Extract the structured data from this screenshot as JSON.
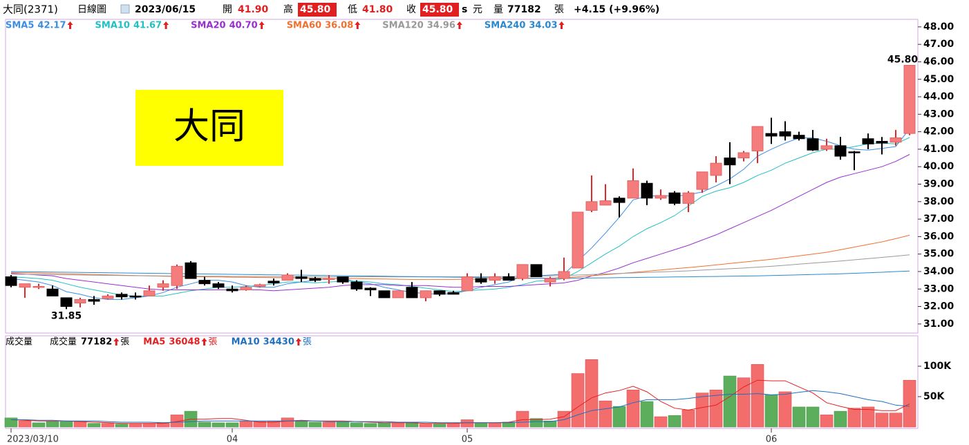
{
  "header": {
    "name": "大同(2371)",
    "period": "日線圖",
    "date": "2023/06/15",
    "open_label": "開",
    "open": "41.90",
    "high_label": "高",
    "high": "45.80",
    "low_label": "低",
    "low": "41.80",
    "close_label": "收",
    "close": "45.80",
    "s": "s",
    "currency": "元",
    "volume_label": "量",
    "volume": "77182",
    "volume_unit": "張",
    "change": "+4.15 (+9.96%)"
  },
  "chart_data": [
    {
      "type": "candlestick",
      "callout": "大同",
      "categories": [
        "2023/03/10",
        null,
        null,
        null,
        null,
        null,
        null,
        null,
        null,
        null,
        null,
        null,
        null,
        null,
        null,
        null,
        "04",
        null,
        null,
        null,
        null,
        null,
        null,
        null,
        null,
        null,
        null,
        null,
        null,
        null,
        null,
        null,
        null,
        "05",
        null,
        null,
        null,
        null,
        null,
        null,
        null,
        null,
        null,
        null,
        null,
        null,
        null,
        null,
        null,
        null,
        null,
        null,
        null,
        null,
        null,
        "06",
        null,
        null,
        null,
        null,
        null,
        null,
        null,
        null,
        null,
        null
      ],
      "open": [
        33.7,
        33.1,
        33.1,
        33.0,
        32.5,
        32.2,
        32.4,
        32.45,
        32.7,
        32.6,
        32.6,
        33.1,
        33.2,
        34.5,
        33.5,
        33.3,
        33.0,
        32.95,
        33.15,
        33.45,
        33.5,
        33.7,
        33.6,
        33.55,
        33.7,
        33.4,
        33.05,
        32.9,
        32.5,
        33.1,
        32.5,
        32.9,
        32.8,
        32.9,
        33.6,
        33.5,
        33.7,
        33.6,
        34.4,
        33.4,
        33.6,
        34.2,
        37.5,
        37.8,
        38.2,
        38.2,
        39.05,
        38.2,
        38.5,
        37.9,
        38.7,
        39.5,
        40.5,
        40.5,
        40.9,
        41.9,
        42.0,
        41.8,
        41.6,
        41.0,
        41.2,
        40.85,
        41.6,
        41.45,
        41.4,
        41.9
      ],
      "high": [
        33.8,
        33.3,
        33.3,
        33.2,
        32.5,
        32.5,
        32.6,
        32.7,
        32.8,
        32.8,
        33.2,
        33.5,
        34.4,
        34.6,
        33.7,
        33.4,
        33.2,
        33.2,
        33.3,
        33.6,
        33.9,
        34.1,
        33.7,
        33.8,
        33.7,
        33.5,
        33.1,
        32.9,
        32.9,
        33.4,
        32.9,
        32.9,
        32.9,
        33.9,
        33.9,
        33.9,
        33.9,
        34.4,
        34.4,
        33.7,
        34.8,
        37.4,
        39.5,
        39.0,
        38.3,
        39.9,
        39.2,
        38.7,
        38.6,
        38.6,
        39.7,
        40.6,
        41.4,
        40.9,
        42.3,
        42.8,
        42.6,
        42.0,
        42.1,
        41.6,
        41.7,
        40.9,
        41.9,
        41.7,
        42.1,
        45.8
      ],
      "low": [
        33.1,
        32.5,
        33.0,
        32.6,
        31.85,
        31.95,
        32.1,
        32.4,
        32.4,
        32.4,
        32.6,
        32.9,
        33.0,
        33.6,
        33.2,
        33.0,
        32.8,
        32.9,
        33.1,
        33.2,
        33.5,
        33.4,
        33.4,
        33.3,
        33.3,
        32.9,
        32.6,
        32.5,
        32.5,
        32.5,
        32.3,
        32.6,
        32.7,
        32.9,
        33.3,
        33.3,
        33.5,
        33.5,
        33.7,
        33.15,
        33.5,
        34.2,
        37.4,
        37.8,
        37.1,
        38.2,
        37.8,
        38.1,
        37.8,
        37.4,
        38.5,
        39.1,
        39.0,
        40.3,
        40.2,
        41.3,
        41.5,
        41.5,
        40.9,
        40.9,
        40.4,
        39.8,
        41.0,
        40.7,
        41.2,
        41.8
      ],
      "close": [
        33.2,
        33.3,
        33.15,
        32.6,
        32.0,
        32.4,
        32.3,
        32.6,
        32.55,
        32.55,
        32.9,
        33.3,
        34.3,
        33.6,
        33.3,
        33.1,
        32.9,
        33.1,
        33.25,
        33.35,
        33.8,
        33.6,
        33.5,
        33.6,
        33.4,
        33.0,
        32.95,
        32.5,
        32.9,
        32.5,
        32.9,
        32.7,
        32.7,
        33.7,
        33.4,
        33.7,
        33.5,
        34.4,
        33.7,
        33.6,
        34.0,
        37.4,
        38.0,
        38.05,
        37.95,
        39.2,
        38.2,
        38.35,
        37.9,
        38.5,
        39.7,
        40.2,
        40.1,
        40.8,
        42.3,
        41.75,
        41.75,
        41.6,
        40.95,
        41.2,
        40.6,
        40.8,
        41.3,
        41.35,
        41.65,
        45.8
      ],
      "up_color": "#f47c7c",
      "up_edge": "#e02828",
      "down_color": "#000000",
      "annotations": [
        {
          "text": "45.80",
          "value": 45.8,
          "at": "high"
        },
        {
          "text": "31.85",
          "value": 31.85,
          "at": "low"
        }
      ],
      "ylim": [
        30.48,
        48.43
      ],
      "yticks": [
        {
          "value": 31,
          "label": "31.00"
        },
        {
          "value": 32,
          "label": "32.00"
        },
        {
          "value": 33,
          "label": "33.00"
        },
        {
          "value": 34,
          "label": "34.00"
        },
        {
          "value": 35,
          "label": "35.00"
        },
        {
          "value": 36,
          "label": "36.00"
        },
        {
          "value": 37,
          "label": "37.00"
        },
        {
          "value": 38,
          "label": "38.00"
        },
        {
          "value": 39,
          "label": "39.00"
        },
        {
          "value": 40,
          "label": "40.00"
        },
        {
          "value": 41,
          "label": "41.00"
        },
        {
          "value": 42,
          "label": "42.00"
        },
        {
          "value": 43,
          "label": "43.00"
        },
        {
          "value": 44,
          "label": "44.00"
        },
        {
          "value": 45,
          "label": "45.00"
        },
        {
          "value": 46,
          "label": "46.00"
        },
        {
          "value": 47,
          "label": "47.00"
        },
        {
          "value": 48,
          "label": "48.00"
        }
      ],
      "series": [
        {
          "name": "SMA5",
          "legend_value": "42.17",
          "color": "#3a8ee6",
          "values": [
            33.6,
            33.5,
            33.4,
            33.2,
            32.85,
            32.7,
            32.5,
            32.4,
            32.4,
            32.5,
            32.6,
            32.8,
            33.1,
            33.3,
            33.5,
            33.5,
            33.4,
            33.2,
            33.1,
            33.1,
            33.3,
            33.4,
            33.5,
            33.6,
            33.6,
            33.4,
            33.3,
            33.1,
            32.95,
            32.8,
            32.75,
            32.7,
            32.75,
            32.9,
            33.1,
            33.25,
            33.4,
            33.75,
            33.75,
            33.8,
            33.85,
            34.6,
            35.35,
            36.2,
            37.1,
            38.1,
            38.3,
            38.35,
            38.3,
            38.4,
            38.55,
            38.9,
            39.3,
            39.85,
            40.6,
            41.0,
            41.35,
            41.65,
            41.65,
            41.45,
            41.2,
            41.0,
            40.95,
            41.05,
            41.15,
            42.17
          ]
        },
        {
          "name": "SMA10",
          "legend_value": "41.67",
          "color": "#22c0c4",
          "values": [
            33.7,
            33.65,
            33.6,
            33.5,
            33.3,
            33.1,
            32.95,
            32.8,
            32.65,
            32.6,
            32.6,
            32.6,
            32.75,
            32.9,
            33.0,
            33.1,
            33.1,
            33.15,
            33.2,
            33.3,
            33.4,
            33.4,
            33.35,
            33.4,
            33.45,
            33.45,
            33.4,
            33.3,
            33.25,
            33.15,
            33.05,
            32.95,
            32.85,
            32.9,
            32.95,
            33.0,
            33.1,
            33.25,
            33.45,
            33.5,
            33.6,
            34.0,
            34.5,
            35.0,
            35.45,
            36.0,
            36.45,
            36.8,
            37.2,
            37.75,
            38.3,
            38.6,
            38.8,
            39.1,
            39.5,
            39.8,
            40.2,
            40.5,
            40.8,
            41.0,
            41.0,
            41.15,
            41.3,
            41.35,
            41.3,
            41.67
          ]
        },
        {
          "name": "SMA20",
          "legend_value": "40.70",
          "color": "#9a2fd0",
          "values": [
            33.9,
            33.85,
            33.8,
            33.75,
            33.6,
            33.5,
            33.4,
            33.3,
            33.2,
            33.1,
            33.0,
            32.95,
            32.95,
            32.95,
            32.95,
            32.95,
            32.95,
            32.95,
            32.95,
            32.9,
            32.95,
            33.0,
            33.05,
            33.1,
            33.2,
            33.25,
            33.25,
            33.25,
            33.2,
            33.2,
            33.2,
            33.15,
            33.1,
            33.1,
            33.15,
            33.15,
            33.15,
            33.2,
            33.25,
            33.3,
            33.35,
            33.5,
            33.75,
            33.95,
            34.2,
            34.5,
            34.75,
            35.0,
            35.25,
            35.5,
            35.8,
            36.1,
            36.45,
            36.8,
            37.15,
            37.5,
            37.9,
            38.3,
            38.7,
            39.1,
            39.4,
            39.6,
            39.8,
            40.0,
            40.3,
            40.7
          ]
        },
        {
          "name": "SMA60",
          "legend_value": "36.08",
          "color": "#f07030",
          "values": [
            33.95,
            33.93,
            33.91,
            33.89,
            33.87,
            33.85,
            33.83,
            33.81,
            33.79,
            33.77,
            33.75,
            33.73,
            33.72,
            33.71,
            33.7,
            33.69,
            33.68,
            33.67,
            33.66,
            33.65,
            33.64,
            33.63,
            33.62,
            33.61,
            33.6,
            33.59,
            33.58,
            33.57,
            33.56,
            33.55,
            33.55,
            33.55,
            33.55,
            33.56,
            33.57,
            33.58,
            33.59,
            33.6,
            33.61,
            33.62,
            33.65,
            33.7,
            33.76,
            33.82,
            33.88,
            33.95,
            34.02,
            34.09,
            34.16,
            34.23,
            34.3,
            34.38,
            34.46,
            34.54,
            34.62,
            34.7,
            34.8,
            34.9,
            35.0,
            35.1,
            35.25,
            35.4,
            35.55,
            35.7,
            35.88,
            36.08
          ]
        },
        {
          "name": "SMA120",
          "legend_value": "34.96",
          "color": "#999999",
          "values": [
            33.85,
            33.84,
            33.83,
            33.82,
            33.81,
            33.8,
            33.79,
            33.78,
            33.77,
            33.76,
            33.75,
            33.75,
            33.74,
            33.74,
            33.73,
            33.73,
            33.72,
            33.72,
            33.71,
            33.71,
            33.7,
            33.7,
            33.7,
            33.7,
            33.7,
            33.7,
            33.7,
            33.7,
            33.7,
            33.7,
            33.7,
            33.7,
            33.7,
            33.7,
            33.7,
            33.71,
            33.72,
            33.73,
            33.74,
            33.75,
            33.77,
            33.8,
            33.83,
            33.86,
            33.89,
            33.92,
            33.95,
            33.98,
            34.01,
            34.04,
            34.08,
            34.12,
            34.16,
            34.2,
            34.25,
            34.3,
            34.36,
            34.42,
            34.48,
            34.54,
            34.6,
            34.67,
            34.74,
            34.81,
            34.88,
            34.96
          ]
        },
        {
          "name": "SMA240",
          "legend_value": "34.03",
          "color": "#2a88d0",
          "values": [
            34.0,
            33.99,
            33.98,
            33.97,
            33.96,
            33.95,
            33.94,
            33.93,
            33.92,
            33.91,
            33.9,
            33.89,
            33.88,
            33.87,
            33.86,
            33.85,
            33.84,
            33.83,
            33.82,
            33.81,
            33.8,
            33.79,
            33.78,
            33.77,
            33.76,
            33.75,
            33.74,
            33.73,
            33.72,
            33.71,
            33.7,
            33.69,
            33.68,
            33.67,
            33.66,
            33.65,
            33.64,
            33.63,
            33.62,
            33.62,
            33.62,
            33.62,
            33.63,
            33.64,
            33.65,
            33.66,
            33.67,
            33.68,
            33.69,
            33.7,
            33.71,
            33.72,
            33.73,
            33.74,
            33.75,
            33.77,
            33.79,
            33.81,
            33.83,
            33.85,
            33.87,
            33.9,
            33.93,
            33.96,
            34.0,
            34.03
          ]
        }
      ]
    },
    {
      "type": "bar",
      "title": "成交量",
      "name": "成交量",
      "legend_value": "77182",
      "unit": "張",
      "values": [
        15,
        10,
        7,
        9,
        9,
        9,
        6,
        6,
        5,
        5,
        6,
        7,
        20,
        26,
        8,
        7,
        7,
        9,
        9,
        10,
        15,
        10,
        8,
        8,
        8,
        7,
        6,
        7,
        7,
        7,
        5,
        5,
        6,
        12,
        7,
        7,
        8,
        26,
        14,
        10,
        26,
        88,
        111,
        43,
        34,
        61,
        42,
        17,
        19,
        28,
        56,
        61,
        84,
        81,
        103,
        53,
        58,
        33,
        33,
        20,
        26,
        31,
        33,
        23,
        23,
        77
      ],
      "up_color": "#f46d6d",
      "down_color": "#5cae5c",
      "ylim": [
        0,
        150
      ],
      "yticks": [
        {
          "value": 50,
          "label": "50K"
        },
        {
          "value": 100,
          "label": "100K"
        }
      ],
      "series": [
        {
          "name": "MA5",
          "legend_value": "36048",
          "unit": "張",
          "color": "#e52020",
          "values": [
            12,
            11,
            10,
            10,
            10,
            9,
            8,
            7,
            6,
            6,
            6,
            6,
            9,
            13,
            13,
            14,
            14,
            11,
            8,
            8,
            10,
            11,
            10,
            10,
            10,
            9,
            8,
            7,
            7,
            7,
            6,
            6,
            6,
            7,
            7,
            7,
            8,
            12,
            12,
            13,
            17,
            33,
            48,
            56,
            60,
            67,
            58,
            42,
            31,
            28,
            32,
            36,
            50,
            66,
            77,
            76,
            76,
            66,
            56,
            40,
            34,
            29,
            29,
            27,
            27,
            38
          ]
        },
        {
          "name": "MA10",
          "legend_value": "34430",
          "unit": "張",
          "color": "#1f6fc0",
          "values": [
            12,
            12,
            11,
            11,
            10,
            10,
            10,
            9,
            8,
            8,
            8,
            7,
            8,
            9,
            10,
            10,
            10,
            10,
            10,
            10,
            10,
            10,
            10,
            9,
            9,
            9,
            9,
            9,
            8,
            8,
            8,
            7,
            7,
            7,
            7,
            7,
            7,
            8,
            9,
            9,
            12,
            20,
            27,
            30,
            33,
            40,
            45,
            45,
            45,
            47,
            50,
            52,
            54,
            54,
            55,
            53,
            54,
            57,
            60,
            58,
            55,
            50,
            45,
            42,
            36,
            34
          ]
        }
      ]
    }
  ]
}
